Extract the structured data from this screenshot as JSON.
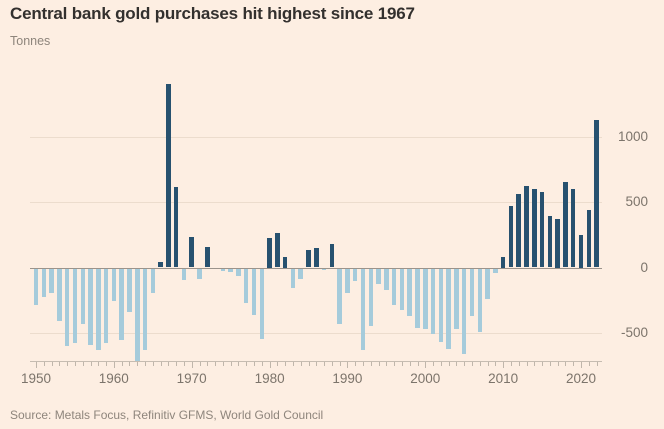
{
  "header": {
    "title": "Central bank gold purchases hit highest since 1967",
    "subtitle": "Tonnes"
  },
  "footer": {
    "source": "Source: Metals Focus, Refinitiv GFMS, World Gold Council"
  },
  "colors": {
    "background": "#fdeee2",
    "positive_bar": "#27516f",
    "negative_bar": "#a5cbdb",
    "gridline": "#ecdccd",
    "zero_line": "#9b938b",
    "axis_line": "#c6bcb1",
    "tick": "#c0b6ab",
    "axis_label_text": "#7c746b",
    "title_text": "#33302e",
    "muted_text": "#8e857c"
  },
  "chart_data": {
    "type": "bar",
    "title": "Central bank gold purchases hit highest since 1967",
    "ylabel": "Tonnes",
    "grid": "horizontal",
    "y_axis_position": "right",
    "ylim": [
      -750,
      1500
    ],
    "y_ticks": [
      1000,
      500,
      0,
      -500
    ],
    "x_tick_labels": [
      "1950",
      "1960",
      "1970",
      "1980",
      "1990",
      "2000",
      "2010",
      "2020"
    ],
    "x": [
      1950,
      1951,
      1952,
      1953,
      1954,
      1955,
      1956,
      1957,
      1958,
      1959,
      1960,
      1961,
      1962,
      1963,
      1964,
      1965,
      1966,
      1967,
      1968,
      1969,
      1970,
      1971,
      1972,
      1973,
      1974,
      1975,
      1976,
      1977,
      1978,
      1979,
      1980,
      1981,
      1982,
      1983,
      1984,
      1985,
      1986,
      1987,
      1988,
      1989,
      1990,
      1991,
      1992,
      1993,
      1994,
      1995,
      1996,
      1997,
      1998,
      1999,
      2000,
      2001,
      2002,
      2003,
      2004,
      2005,
      2006,
      2007,
      2008,
      2009,
      2010,
      2011,
      2012,
      2013,
      2014,
      2015,
      2016,
      2017,
      2018,
      2019,
      2020,
      2021,
      2022
    ],
    "values": [
      -275,
      -215,
      -190,
      -400,
      -590,
      -570,
      -425,
      -585,
      -620,
      -570,
      -250,
      -545,
      -330,
      -705,
      -620,
      -185,
      40,
      1400,
      615,
      -85,
      235,
      -80,
      155,
      0,
      -15,
      -30,
      -58,
      -260,
      -355,
      -540,
      225,
      265,
      80,
      -150,
      -80,
      135,
      150,
      -10,
      180,
      -425,
      -185,
      -95,
      -620,
      -440,
      -120,
      -160,
      -280,
      -320,
      -365,
      -455,
      -465,
      -500,
      -560,
      -615,
      -460,
      -650,
      -365,
      -485,
      -230,
      -35,
      80,
      470,
      560,
      625,
      600,
      575,
      390,
      370,
      655,
      600,
      250,
      440,
      1125
    ]
  }
}
